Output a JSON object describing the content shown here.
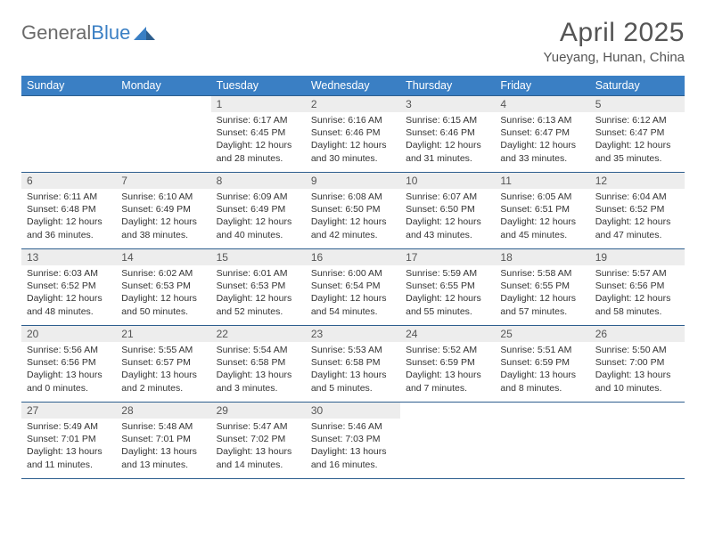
{
  "logo": {
    "text1": "General",
    "text2": "Blue"
  },
  "header": {
    "title": "April 2025",
    "subtitle": "Yueyang, Hunan, China"
  },
  "colors": {
    "header_bg": "#3a7fc4",
    "header_text": "#ffffff",
    "border": "#2d5e8e",
    "daynum_bg": "#ededed",
    "text": "#333333",
    "logo_gray": "#6a6a6a",
    "logo_blue": "#3a7fc4",
    "page_bg": "#ffffff"
  },
  "day_headers": [
    "Sunday",
    "Monday",
    "Tuesday",
    "Wednesday",
    "Thursday",
    "Friday",
    "Saturday"
  ],
  "weeks": [
    [
      null,
      null,
      {
        "n": "1",
        "sr": "6:17 AM",
        "ss": "6:45 PM",
        "dl": "12 hours and 28 minutes."
      },
      {
        "n": "2",
        "sr": "6:16 AM",
        "ss": "6:46 PM",
        "dl": "12 hours and 30 minutes."
      },
      {
        "n": "3",
        "sr": "6:15 AM",
        "ss": "6:46 PM",
        "dl": "12 hours and 31 minutes."
      },
      {
        "n": "4",
        "sr": "6:13 AM",
        "ss": "6:47 PM",
        "dl": "12 hours and 33 minutes."
      },
      {
        "n": "5",
        "sr": "6:12 AM",
        "ss": "6:47 PM",
        "dl": "12 hours and 35 minutes."
      }
    ],
    [
      {
        "n": "6",
        "sr": "6:11 AM",
        "ss": "6:48 PM",
        "dl": "12 hours and 36 minutes."
      },
      {
        "n": "7",
        "sr": "6:10 AM",
        "ss": "6:49 PM",
        "dl": "12 hours and 38 minutes."
      },
      {
        "n": "8",
        "sr": "6:09 AM",
        "ss": "6:49 PM",
        "dl": "12 hours and 40 minutes."
      },
      {
        "n": "9",
        "sr": "6:08 AM",
        "ss": "6:50 PM",
        "dl": "12 hours and 42 minutes."
      },
      {
        "n": "10",
        "sr": "6:07 AM",
        "ss": "6:50 PM",
        "dl": "12 hours and 43 minutes."
      },
      {
        "n": "11",
        "sr": "6:05 AM",
        "ss": "6:51 PM",
        "dl": "12 hours and 45 minutes."
      },
      {
        "n": "12",
        "sr": "6:04 AM",
        "ss": "6:52 PM",
        "dl": "12 hours and 47 minutes."
      }
    ],
    [
      {
        "n": "13",
        "sr": "6:03 AM",
        "ss": "6:52 PM",
        "dl": "12 hours and 48 minutes."
      },
      {
        "n": "14",
        "sr": "6:02 AM",
        "ss": "6:53 PM",
        "dl": "12 hours and 50 minutes."
      },
      {
        "n": "15",
        "sr": "6:01 AM",
        "ss": "6:53 PM",
        "dl": "12 hours and 52 minutes."
      },
      {
        "n": "16",
        "sr": "6:00 AM",
        "ss": "6:54 PM",
        "dl": "12 hours and 54 minutes."
      },
      {
        "n": "17",
        "sr": "5:59 AM",
        "ss": "6:55 PM",
        "dl": "12 hours and 55 minutes."
      },
      {
        "n": "18",
        "sr": "5:58 AM",
        "ss": "6:55 PM",
        "dl": "12 hours and 57 minutes."
      },
      {
        "n": "19",
        "sr": "5:57 AM",
        "ss": "6:56 PM",
        "dl": "12 hours and 58 minutes."
      }
    ],
    [
      {
        "n": "20",
        "sr": "5:56 AM",
        "ss": "6:56 PM",
        "dl": "13 hours and 0 minutes."
      },
      {
        "n": "21",
        "sr": "5:55 AM",
        "ss": "6:57 PM",
        "dl": "13 hours and 2 minutes."
      },
      {
        "n": "22",
        "sr": "5:54 AM",
        "ss": "6:58 PM",
        "dl": "13 hours and 3 minutes."
      },
      {
        "n": "23",
        "sr": "5:53 AM",
        "ss": "6:58 PM",
        "dl": "13 hours and 5 minutes."
      },
      {
        "n": "24",
        "sr": "5:52 AM",
        "ss": "6:59 PM",
        "dl": "13 hours and 7 minutes."
      },
      {
        "n": "25",
        "sr": "5:51 AM",
        "ss": "6:59 PM",
        "dl": "13 hours and 8 minutes."
      },
      {
        "n": "26",
        "sr": "5:50 AM",
        "ss": "7:00 PM",
        "dl": "13 hours and 10 minutes."
      }
    ],
    [
      {
        "n": "27",
        "sr": "5:49 AM",
        "ss": "7:01 PM",
        "dl": "13 hours and 11 minutes."
      },
      {
        "n": "28",
        "sr": "5:48 AM",
        "ss": "7:01 PM",
        "dl": "13 hours and 13 minutes."
      },
      {
        "n": "29",
        "sr": "5:47 AM",
        "ss": "7:02 PM",
        "dl": "13 hours and 14 minutes."
      },
      {
        "n": "30",
        "sr": "5:46 AM",
        "ss": "7:03 PM",
        "dl": "13 hours and 16 minutes."
      },
      null,
      null,
      null
    ]
  ],
  "labels": {
    "sunrise": "Sunrise: ",
    "sunset": "Sunset: ",
    "daylight": "Daylight: "
  }
}
